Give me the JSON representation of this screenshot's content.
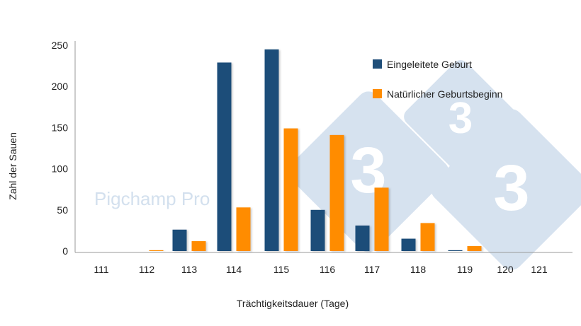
{
  "chart_data": {
    "type": "bar",
    "title": "",
    "xlabel": "Trächtigkeitsdauer (Tage)",
    "ylabel": "Zahl der Sauen",
    "categories": [
      "111",
      "112",
      "113",
      "114",
      "115",
      "116",
      "117",
      "118",
      "119",
      "120",
      "121"
    ],
    "ylim": [
      0,
      250
    ],
    "yticks": [
      "0",
      "50",
      "100",
      "150",
      "200",
      "250"
    ],
    "grid": false,
    "legend_position": "top-right",
    "series": [
      {
        "name": "Eingeleitete Geburt",
        "color": "#1f4e79",
        "values": [
          0,
          0,
          26,
          229,
          245,
          50,
          31,
          15,
          1,
          0,
          0
        ]
      },
      {
        "name": "Natürlicher Geburtsbeginn",
        "color": "#ff8c00",
        "values": [
          0,
          1,
          12,
          53,
          149,
          141,
          77,
          34,
          6,
          0,
          0
        ]
      }
    ]
  },
  "watermark": {
    "text": "Pigchamp Pro",
    "logo_digit": "3",
    "logo_color": "#d6e2ef"
  }
}
